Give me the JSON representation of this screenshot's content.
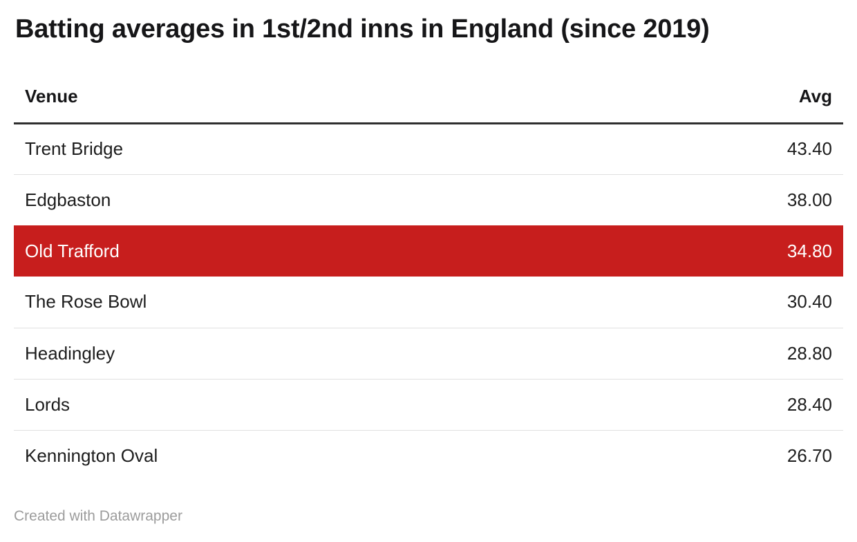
{
  "title": "Batting averages in 1st/2nd inns in England (since 2019)",
  "table": {
    "columns": [
      "Venue",
      "Avg"
    ],
    "rows": [
      {
        "venue": "Trent Bridge",
        "avg": "43.40",
        "highlighted": false
      },
      {
        "venue": "Edgbaston",
        "avg": "38.00",
        "highlighted": false
      },
      {
        "venue": "Old Trafford",
        "avg": "34.80",
        "highlighted": true
      },
      {
        "venue": "The Rose Bowl",
        "avg": "30.40",
        "highlighted": false
      },
      {
        "venue": "Headingley",
        "avg": "28.80",
        "highlighted": false
      },
      {
        "venue": "Lords",
        "avg": "28.40",
        "highlighted": false
      },
      {
        "venue": "Kennington Oval",
        "avg": "26.70",
        "highlighted": false
      }
    ]
  },
  "footer": {
    "credit": "Created with Datawrapper"
  },
  "colors": {
    "highlight_row_bg": "#c71e1d",
    "highlight_row_text": "#ffffff",
    "header_rule": "#2e2e2e",
    "row_divider": "#e0e0e0",
    "text": "#1d1d1d",
    "footer_text": "#9c9c9c",
    "background": "#ffffff"
  },
  "chart_data": {
    "type": "table",
    "title": "Batting averages in 1st/2nd inns in England (since 2019)",
    "columns": [
      "Venue",
      "Avg"
    ],
    "rows": [
      [
        "Trent Bridge",
        43.4
      ],
      [
        "Edgbaston",
        38.0
      ],
      [
        "Old Trafford",
        34.8
      ],
      [
        "The Rose Bowl",
        30.4
      ],
      [
        "Headingley",
        28.8
      ],
      [
        "Lords",
        28.4
      ],
      [
        "Kennington Oval",
        26.7
      ]
    ],
    "highlighted_row": "Old Trafford",
    "sort": "Avg descending",
    "credit": "Created with Datawrapper"
  }
}
